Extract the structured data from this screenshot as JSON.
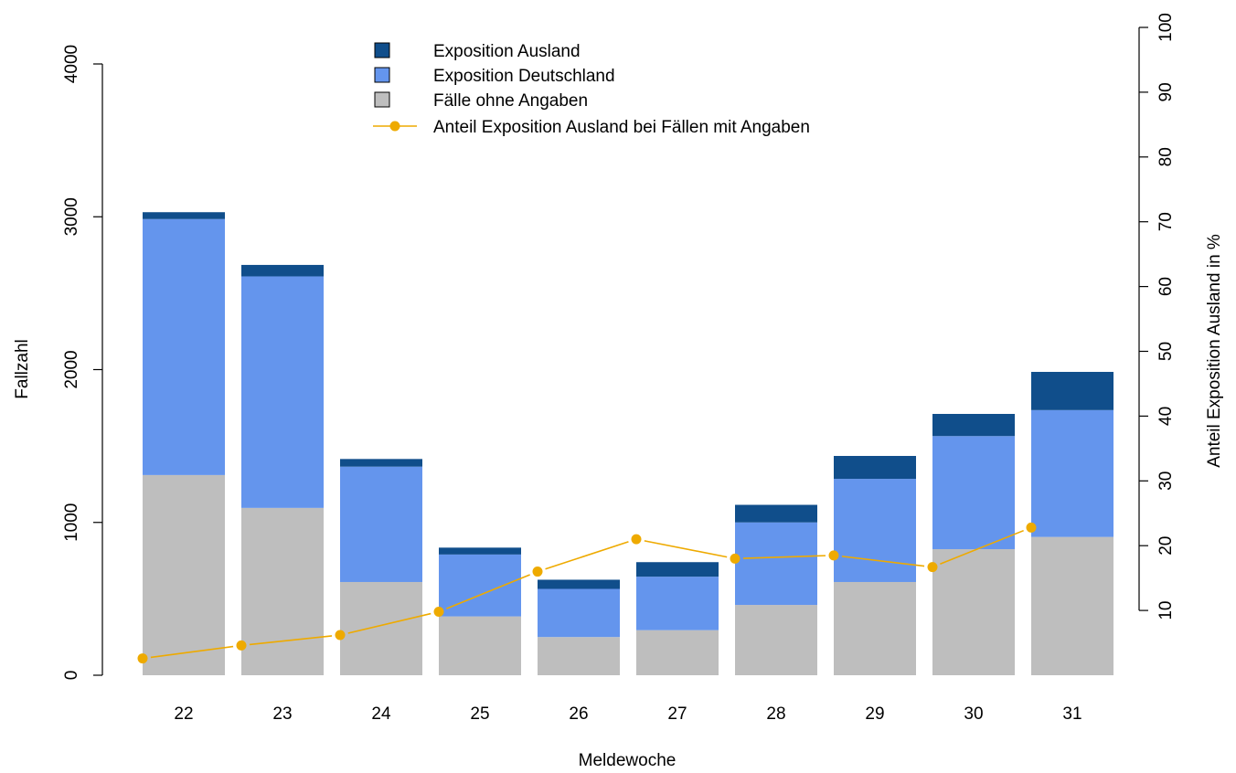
{
  "chart_data": {
    "type": "bar",
    "stacked": true,
    "xlabel": "Meldewoche",
    "ylabel": "Fallzahl",
    "y2label": "Anteil Exposition Ausland in %",
    "categories": [
      "22",
      "23",
      "24",
      "25",
      "26",
      "27",
      "28",
      "29",
      "30",
      "31"
    ],
    "ylim": [
      0,
      4000
    ],
    "yticks": [
      0,
      1000,
      2000,
      3000,
      4000
    ],
    "y2lim": [
      0,
      100
    ],
    "y2ticks": [
      10,
      20,
      30,
      40,
      50,
      60,
      70,
      80,
      90,
      100
    ],
    "series": [
      {
        "name": "Fälle ohne Angaben",
        "color": "#bebebe",
        "values": [
          1310,
          1095,
          610,
          385,
          250,
          295,
          460,
          610,
          825,
          905
        ]
      },
      {
        "name": "Exposition Deutschland",
        "color": "#6495ed",
        "values": [
          1675,
          1515,
          755,
          405,
          315,
          350,
          540,
          675,
          740,
          830
        ]
      },
      {
        "name": "Exposition Ausland",
        "color": "#104e8b",
        "values": [
          45,
          75,
          50,
          45,
          60,
          95,
          115,
          150,
          145,
          250
        ]
      }
    ],
    "line_series": {
      "name": "Anteil Exposition Ausland bei Fällen mit Angaben",
      "color": "#eeaa00",
      "axis": "right",
      "values": [
        2.6,
        4.6,
        6.2,
        9.8,
        16.0,
        21.0,
        18.0,
        18.5,
        16.7,
        22.8
      ]
    },
    "legend": {
      "position": "top-center",
      "entries": [
        "Exposition Ausland",
        "Exposition Deutschland",
        "Fälle ohne Angaben",
        "Anteil Exposition Ausland bei Fällen mit Angaben"
      ]
    },
    "grid": false
  }
}
